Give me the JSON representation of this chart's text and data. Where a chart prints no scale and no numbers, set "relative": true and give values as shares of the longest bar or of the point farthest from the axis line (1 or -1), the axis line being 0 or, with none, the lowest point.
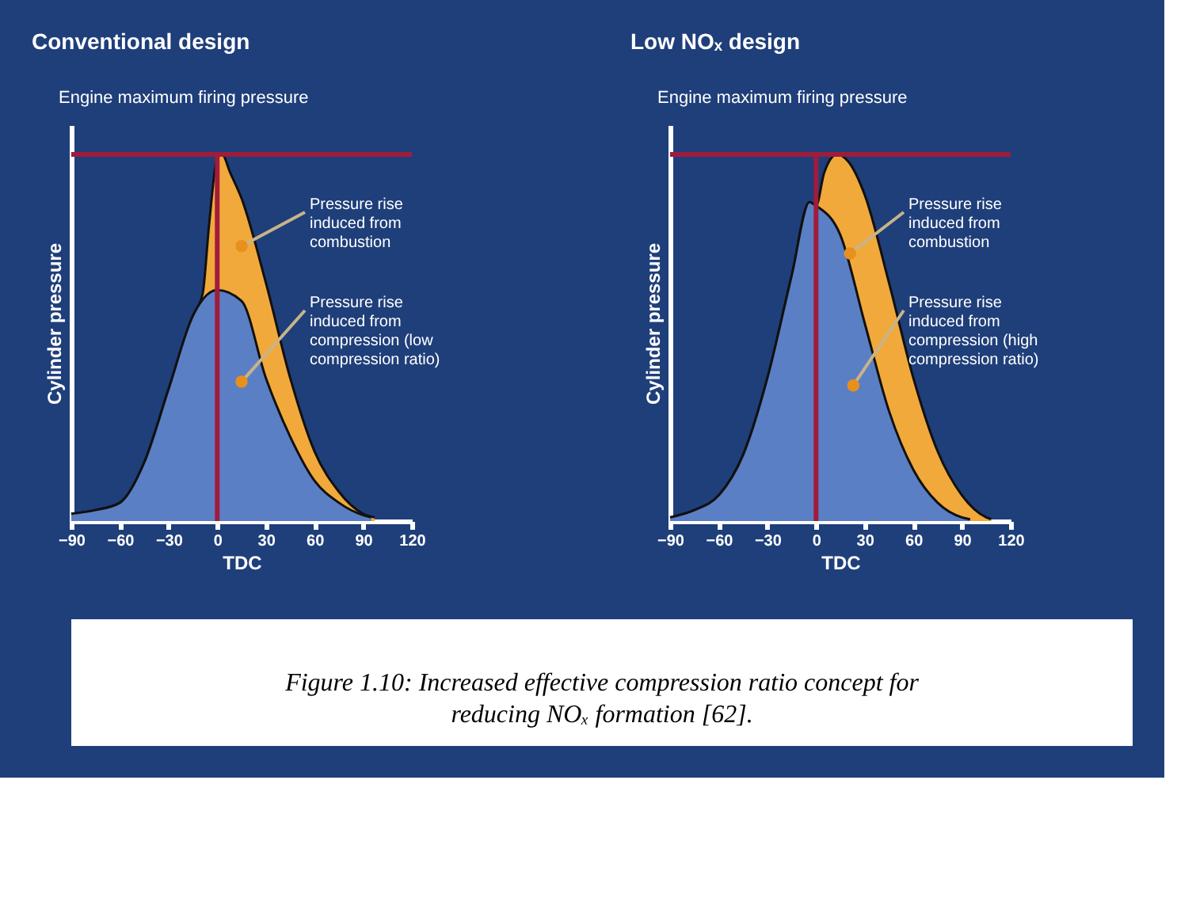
{
  "chart_data": [
    {
      "type": "area",
      "title": "Conventional design",
      "xlabel": "TDC",
      "ylabel": "Cylinder pressure",
      "relative": true,
      "xlim": [
        -90,
        120
      ],
      "xticks": [
        -90,
        -60,
        -30,
        0,
        30,
        60,
        90,
        120
      ],
      "tick_labels": "x",
      "grid": false,
      "series": [
        {
          "color": "#f2a93b",
          "x": [
            -90,
            -75,
            -60,
            -45,
            -30,
            -15,
            -9,
            -5,
            0,
            3,
            8,
            15,
            30,
            45,
            60,
            75,
            90,
            97
          ],
          "values": [
            0.02,
            0.03,
            0.05,
            0.16,
            0.36,
            0.56,
            0.62,
            0.81,
            0.99,
            1,
            0.95,
            0.88,
            0.65,
            0.39,
            0.19,
            0.08,
            0.02,
            0.01
          ]
        },
        {
          "color": "#5b7fc4",
          "x": [
            -90,
            -75,
            -60,
            -45,
            -30,
            -15,
            0,
            15,
            30,
            45,
            60,
            75,
            90,
            95
          ],
          "values": [
            0.02,
            0.03,
            0.05,
            0.16,
            0.36,
            0.56,
            0.63,
            0.6,
            0.39,
            0.23,
            0.11,
            0.05,
            0.016,
            0.01
          ]
        }
      ],
      "ref_lines": [
        {
          "axis": "y",
          "value": 1,
          "label": "Engine maximum firing pressure",
          "color": "#a01c3c"
        },
        {
          "axis": "x",
          "value": 0,
          "color": "#a01c3c"
        }
      ],
      "annotations": [
        {
          "text": "Pressure rise induced from combustion",
          "x": 15,
          "y": 0.75
        },
        {
          "text": "Pressure rise induced from compression (low compression ratio)",
          "x": 15,
          "y": 0.38
        }
      ]
    },
    {
      "type": "area",
      "title": "Low NOₓ design",
      "xlabel": "TDC",
      "ylabel": "Cylinder pressure",
      "relative": true,
      "xlim": [
        -90,
        120
      ],
      "xticks": [
        -90,
        -60,
        -30,
        0,
        30,
        60,
        90,
        120
      ],
      "tick_labels": "x",
      "grid": false,
      "series": [
        {
          "color": "#f2a93b",
          "x": [
            -90,
            -75,
            -60,
            -45,
            -30,
            -15,
            -4,
            0,
            5,
            13,
            20,
            30,
            45,
            60,
            75,
            90,
            105,
            108
          ],
          "values": [
            0.01,
            0.03,
            0.07,
            0.18,
            0.39,
            0.67,
            0.87,
            0.86,
            0.95,
            1,
            0.98,
            0.89,
            0.65,
            0.39,
            0.19,
            0.07,
            0.01,
            0.005
          ]
        },
        {
          "color": "#5b7fc4",
          "x": [
            -90,
            -75,
            -60,
            -45,
            -30,
            -15,
            -4,
            0,
            15,
            30,
            45,
            60,
            75,
            90,
            95
          ],
          "values": [
            0.01,
            0.03,
            0.07,
            0.18,
            0.39,
            0.67,
            0.87,
            0.86,
            0.78,
            0.54,
            0.3,
            0.14,
            0.05,
            0.01,
            0.005
          ]
        }
      ],
      "ref_lines": [
        {
          "axis": "y",
          "value": 1,
          "label": "Engine maximum firing pressure",
          "color": "#a01c3c"
        },
        {
          "axis": "x",
          "value": 0,
          "color": "#a01c3c"
        }
      ],
      "annotations": [
        {
          "text": "Pressure rise induced from combustion",
          "x": 21,
          "y": 0.73
        },
        {
          "text": "Pressure rise induced from compression (high compression ratio)",
          "x": 23,
          "y": 0.37
        },
        "Figure 1.10: Increased effective compression ratio concept for reducing NOₓ formation [62]."
      ]
    }
  ]
}
